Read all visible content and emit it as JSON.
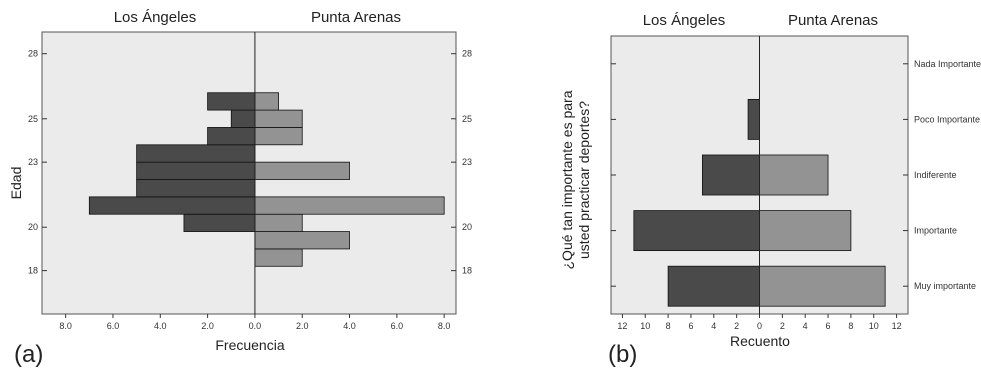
{
  "chart_data": [
    {
      "type": "bar",
      "orientation": "horizontal-pyramid",
      "panel_label": "(a)",
      "left_header": "Los Ángeles",
      "right_header": "Punta Arenas",
      "xlabel": "Frecuencia",
      "ylabel": "Edad",
      "x_ticks": [
        "8.0",
        "6.0",
        "4.0",
        "2.0",
        "0.0",
        "2.0",
        "4.0",
        "6.0",
        "8.0"
      ],
      "xlim": [
        -9,
        8.5
      ],
      "y_ticks": [
        "28",
        "25",
        "23",
        "20",
        "18"
      ],
      "y_tick_values": [
        28,
        25,
        23,
        20,
        18
      ],
      "ylim": [
        16,
        29
      ],
      "bin_width": 0.8,
      "bin_centers": [
        18.6,
        19.4,
        20.2,
        21.0,
        21.8,
        22.6,
        23.4,
        24.2,
        25.0,
        25.8
      ],
      "series": [
        {
          "name": "Los Ángeles",
          "values": [
            0,
            0,
            3,
            7,
            5,
            5,
            5,
            2,
            1,
            2
          ],
          "color": "#4a4a4a"
        },
        {
          "name": "Punta Arenas",
          "values": [
            2,
            4,
            2,
            8,
            0,
            4,
            0,
            2,
            2,
            1
          ],
          "color": "#939393"
        }
      ],
      "grid": false,
      "background": "#ebebeb"
    },
    {
      "type": "bar",
      "orientation": "horizontal-pyramid",
      "panel_label": "(b)",
      "left_header": "Los Ángeles",
      "right_header": "Punta Arenas",
      "xlabel": "Recuento",
      "ylabel": "¿Qué tan importante es para usted practicar deportes?",
      "x_ticks": [
        "12",
        "10",
        "8",
        "6",
        "4",
        "2",
        "0",
        "2",
        "4",
        "6",
        "8",
        "10",
        "12"
      ],
      "xlim": [
        -13,
        13
      ],
      "categories": [
        "Nada Importante",
        "Poco Importante",
        "Indiferente",
        "Importante",
        "Muy importante"
      ],
      "series": [
        {
          "name": "Los Ángeles",
          "values": [
            0,
            1,
            5,
            11,
            8
          ],
          "color": "#4a4a4a"
        },
        {
          "name": "Punta Arenas",
          "values": [
            0,
            0,
            6,
            8,
            11
          ],
          "color": "#939393"
        }
      ],
      "grid": false,
      "background": "#ebebeb"
    }
  ]
}
